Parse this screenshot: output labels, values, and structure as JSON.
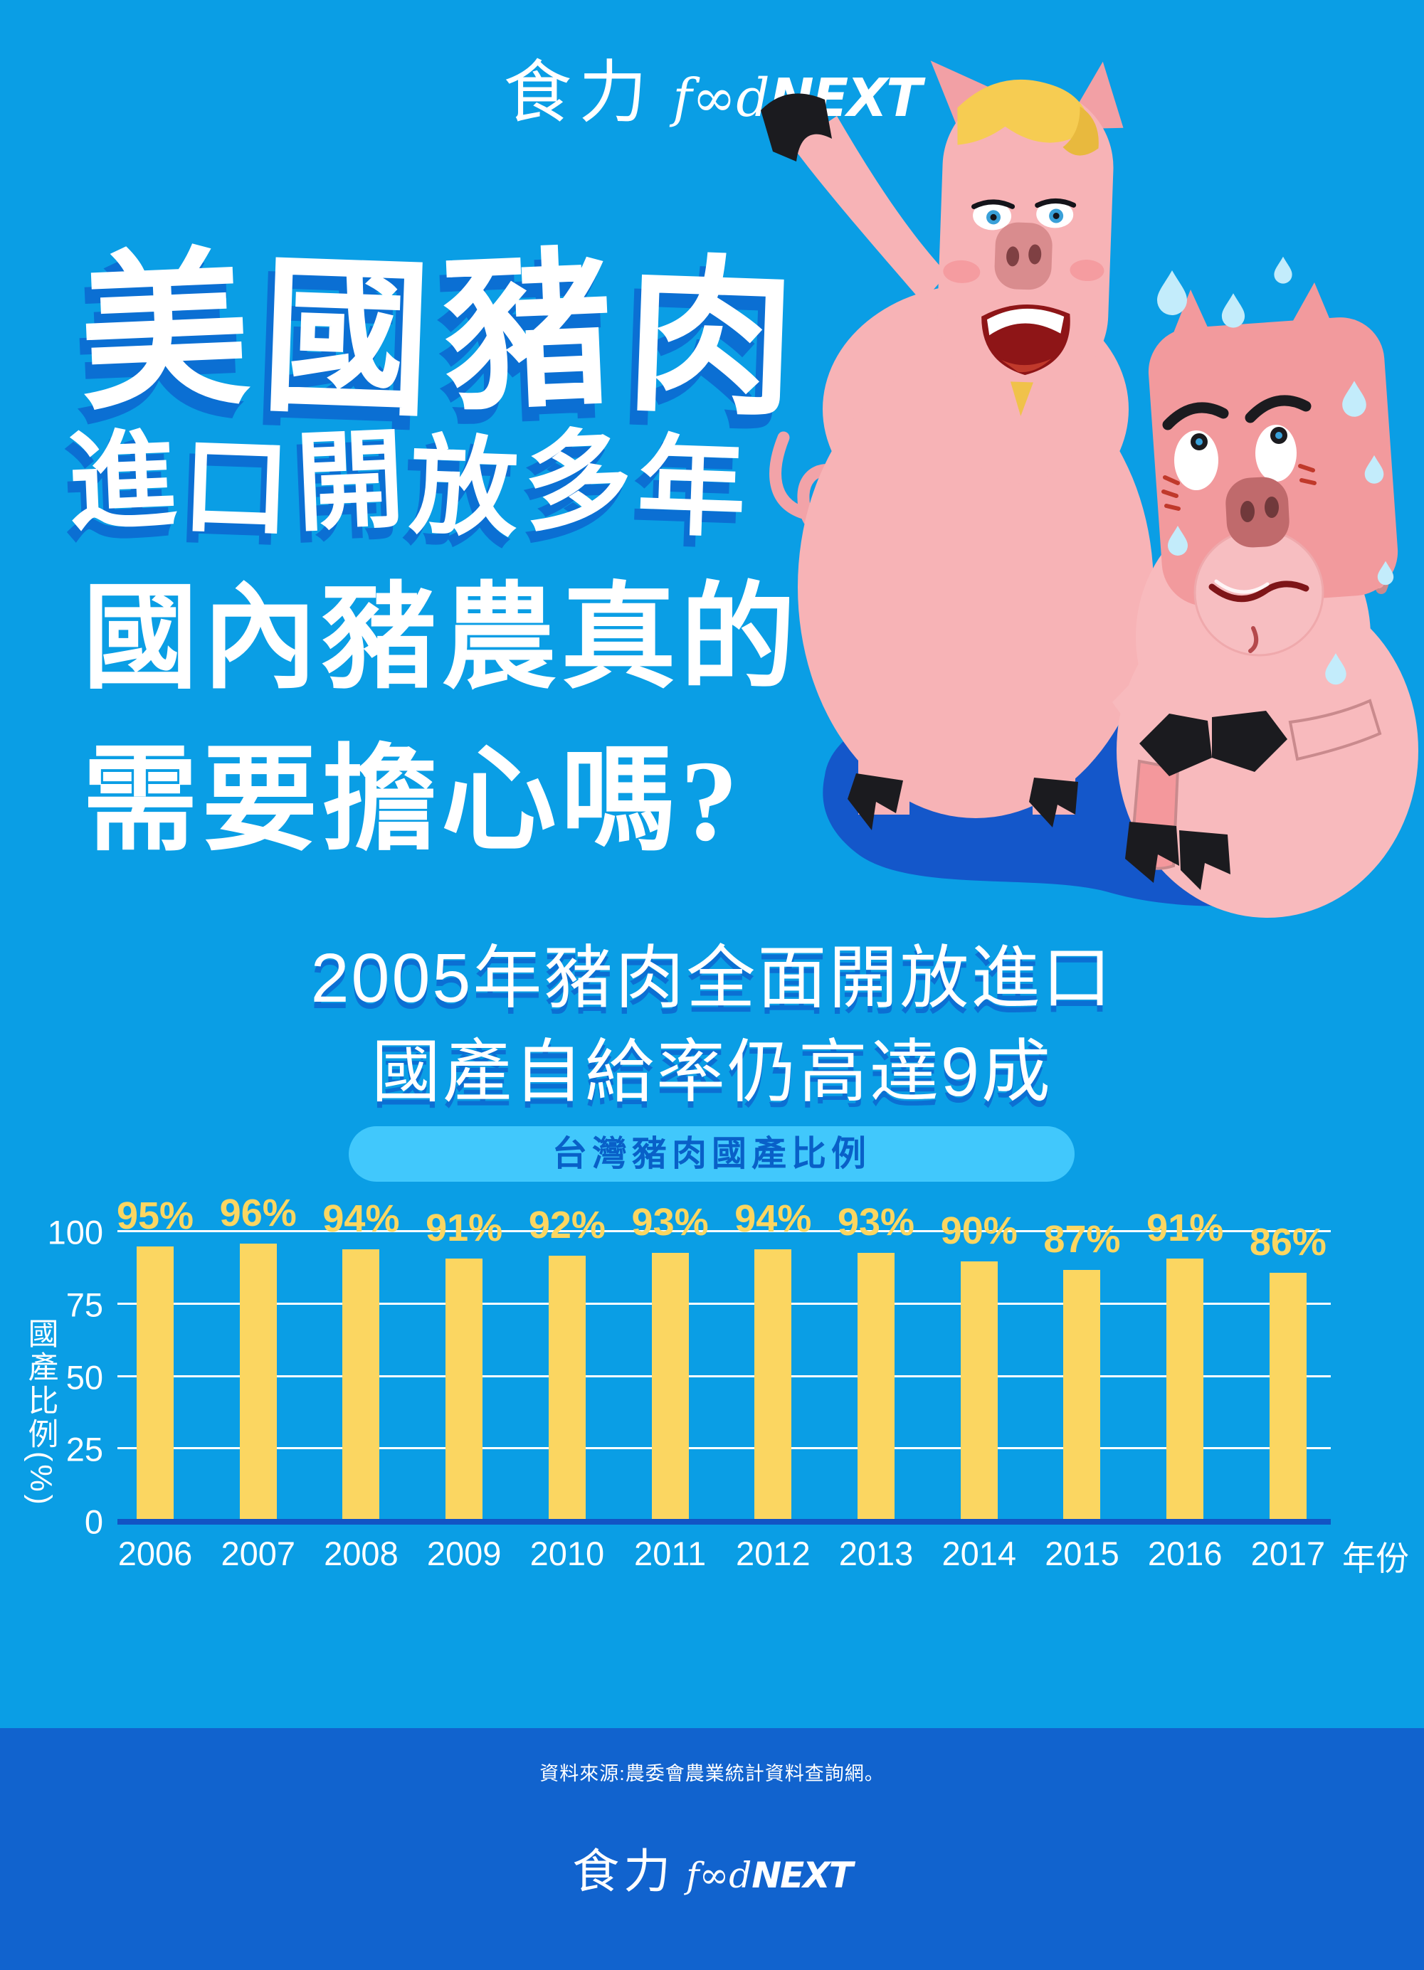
{
  "logo": {
    "cjk": "食力",
    "latin_food": "f∞d",
    "latin_next": "NEXT"
  },
  "hero": {
    "title_line1": "美國豬肉",
    "title_line2": "進口開放多年",
    "subtitle_line1": "國內豬農真的",
    "subtitle_line2": "需要擔心嗎?"
  },
  "section": {
    "heading_line1": "2005年豬肉全面開放進口",
    "heading_line2": "國產自給率仍高達9成"
  },
  "badge": {
    "label": "台灣豬肉國產比例"
  },
  "chart_data": {
    "type": "bar",
    "title": "台灣豬肉國產比例",
    "categories": [
      "2006",
      "2007",
      "2008",
      "2009",
      "2010",
      "2011",
      "2012",
      "2013",
      "2014",
      "2015",
      "2016",
      "2017"
    ],
    "values": [
      95,
      96,
      94,
      91,
      92,
      93,
      94,
      93,
      90,
      87,
      91,
      86
    ],
    "value_labels": [
      "95%",
      "96%",
      "94%",
      "91%",
      "92%",
      "93%",
      "94%",
      "93%",
      "90%",
      "87%",
      "91%",
      "86%"
    ],
    "xlabel": "年份",
    "ylabel": "國產比例(%)",
    "yticks": [
      0,
      25,
      50,
      75,
      100
    ],
    "ylim": [
      0,
      100
    ],
    "grid": true,
    "legend": "none",
    "bar_color": "#FBD661",
    "label_color": "#FBD661"
  },
  "footer": {
    "source": "資料來源:農委會農業統計資料查詢網。"
  },
  "colors": {
    "background": "#0A9EE5",
    "shadow_blue": "#0B6FD3",
    "footer_band": "#1163CE",
    "pill_bg": "#41C8FC",
    "pill_text": "#0960C8",
    "bar_yellow": "#FBD661",
    "baseline_blue": "#1254C4",
    "grid_white": "#FFFFFF",
    "pig_pink": "#F7B3B6",
    "pig_salmon": "#F29A9D",
    "shadow_blob": "#1457CA",
    "sweat_blue": "#C3ECFB"
  }
}
